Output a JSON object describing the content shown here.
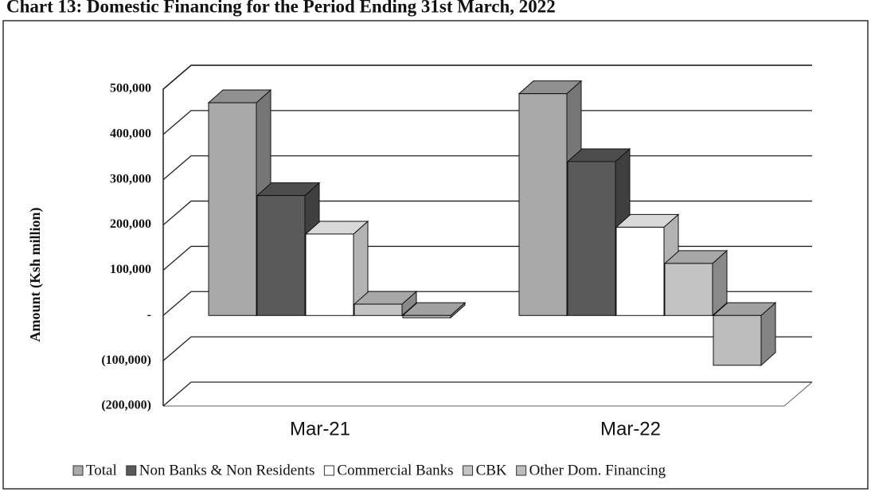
{
  "chart_data": {
    "type": "bar3d",
    "title": "Chart 13: Domestic Financing for the Period Ending 31st March, 2022",
    "y_label": "Amount (Ksh million)",
    "categories": [
      "Mar-21",
      "Mar-22"
    ],
    "series": [
      {
        "name": "Total",
        "color": "#a9a9a9",
        "values": [
          470000,
          490000
        ]
      },
      {
        "name": "Non Banks & Non Residents",
        "color": "#5a5a5a",
        "values": [
          265000,
          340000
        ]
      },
      {
        "name": "Commercial Banks",
        "color": "#ffffff",
        "values": [
          180000,
          195000
        ]
      },
      {
        "name": "CBK",
        "color": "#c4c4c4",
        "values": [
          25000,
          115000
        ]
      },
      {
        "name": "Other Dom. Financing",
        "color": "#bdbdbd",
        "values": [
          -5000,
          -110000
        ]
      }
    ],
    "ylim": [
      -200000,
      500000
    ],
    "yticks": [
      {
        "value": -200000,
        "label": "(200,000)"
      },
      {
        "value": -100000,
        "label": "(100,000)"
      },
      {
        "value": 0,
        "label": "-"
      },
      {
        "value": 100000,
        "label": "100,000"
      },
      {
        "value": 200000,
        "label": "200,000"
      },
      {
        "value": 300000,
        "label": "300,000"
      },
      {
        "value": 400000,
        "label": "400,000"
      },
      {
        "value": 500000,
        "label": "500,000"
      }
    ],
    "grid": true
  }
}
